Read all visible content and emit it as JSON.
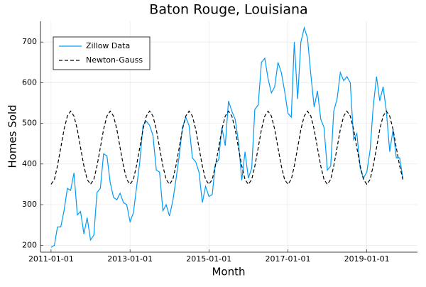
{
  "chart_data": {
    "type": "line",
    "title": "Baton Rouge, Louisiana",
    "xlabel": "Month",
    "ylabel": "Homes Sold",
    "x": [
      "2011-01-01",
      "2011-02-01",
      "2011-03-01",
      "2011-04-01",
      "2011-05-01",
      "2011-06-01",
      "2011-07-01",
      "2011-08-01",
      "2011-09-01",
      "2011-10-01",
      "2011-11-01",
      "2011-12-01",
      "2012-01-01",
      "2012-02-01",
      "2012-03-01",
      "2012-04-01",
      "2012-05-01",
      "2012-06-01",
      "2012-07-01",
      "2012-08-01",
      "2012-09-01",
      "2012-10-01",
      "2012-11-01",
      "2012-12-01",
      "2013-01-01",
      "2013-02-01",
      "2013-03-01",
      "2013-04-01",
      "2013-05-01",
      "2013-06-01",
      "2013-07-01",
      "2013-08-01",
      "2013-09-01",
      "2013-10-01",
      "2013-11-01",
      "2013-12-01",
      "2014-01-01",
      "2014-02-01",
      "2014-03-01",
      "2014-04-01",
      "2014-05-01",
      "2014-06-01",
      "2014-07-01",
      "2014-08-01",
      "2014-09-01",
      "2014-10-01",
      "2014-11-01",
      "2014-12-01",
      "2015-01-01",
      "2015-02-01",
      "2015-03-01",
      "2015-04-01",
      "2015-05-01",
      "2015-06-01",
      "2015-07-01",
      "2015-08-01",
      "2015-09-01",
      "2015-10-01",
      "2015-11-01",
      "2015-12-01",
      "2016-01-01",
      "2016-02-01",
      "2016-03-01",
      "2016-04-01",
      "2016-05-01",
      "2016-06-01",
      "2016-07-01",
      "2016-08-01",
      "2016-09-01",
      "2016-10-01",
      "2016-11-01",
      "2016-12-01",
      "2017-01-01",
      "2017-02-01",
      "2017-03-01",
      "2017-04-01",
      "2017-05-01",
      "2017-06-01",
      "2017-07-01",
      "2017-08-01",
      "2017-09-01",
      "2017-10-01",
      "2017-11-01",
      "2017-12-01",
      "2018-01-01",
      "2018-02-01",
      "2018-03-01",
      "2018-04-01",
      "2018-05-01",
      "2018-06-01",
      "2018-07-01",
      "2018-08-01",
      "2018-09-01",
      "2018-10-01",
      "2018-11-01",
      "2018-12-01",
      "2019-01-01",
      "2019-02-01",
      "2019-03-01",
      "2019-04-01",
      "2019-05-01",
      "2019-06-01",
      "2019-07-01",
      "2019-08-01",
      "2019-09-01",
      "2019-10-01",
      "2019-11-01",
      "2019-12-01"
    ],
    "series": [
      {
        "name": "Zillow Data",
        "color": "#009af9",
        "dash": false,
        "values": [
          195,
          200,
          245,
          245,
          285,
          340,
          335,
          378,
          275,
          283,
          228,
          268,
          213,
          225,
          330,
          340,
          425,
          420,
          355,
          318,
          312,
          328,
          305,
          300,
          258,
          280,
          340,
          405,
          495,
          505,
          495,
          470,
          385,
          380,
          285,
          300,
          272,
          310,
          360,
          420,
          490,
          515,
          495,
          415,
          405,
          380,
          305,
          345,
          320,
          325,
          400,
          410,
          490,
          445,
          555,
          530,
          510,
          455,
          360,
          430,
          365,
          390,
          535,
          545,
          650,
          660,
          610,
          575,
          590,
          650,
          625,
          580,
          525,
          515,
          700,
          560,
          700,
          735,
          710,
          620,
          540,
          580,
          510,
          490,
          385,
          395,
          530,
          560,
          625,
          605,
          615,
          600,
          460,
          475,
          390,
          365,
          380,
          435,
          540,
          615,
          555,
          590,
          530,
          430,
          485,
          415,
          415,
          365
        ]
      },
      {
        "name": "Newton-Gauss",
        "color": "#000000",
        "dash": true,
        "values": [
          350,
          362,
          395,
          440,
          485,
          518,
          530,
          518,
          485,
          440,
          395,
          362,
          350,
          362,
          395,
          440,
          485,
          518,
          530,
          518,
          485,
          440,
          395,
          362,
          350,
          362,
          395,
          440,
          485,
          518,
          530,
          518,
          485,
          440,
          395,
          362,
          350,
          362,
          395,
          440,
          485,
          518,
          530,
          518,
          485,
          440,
          395,
          362,
          350,
          362,
          395,
          440,
          485,
          518,
          530,
          518,
          485,
          440,
          395,
          362,
          350,
          362,
          395,
          440,
          485,
          518,
          530,
          518,
          485,
          440,
          395,
          362,
          350,
          362,
          395,
          440,
          485,
          518,
          530,
          518,
          485,
          440,
          395,
          362,
          350,
          362,
          395,
          440,
          485,
          518,
          530,
          518,
          485,
          440,
          395,
          362,
          350,
          362,
          395,
          440,
          485,
          518,
          530,
          518,
          485,
          440,
          395,
          362
        ]
      }
    ],
    "xlim": [
      "2010-09-25",
      "2020-04-14"
    ],
    "xticks": [
      "2011-01-01",
      "2013-01-01",
      "2015-01-01",
      "2017-01-01",
      "2019-01-01"
    ],
    "ylim": [
      183,
      751
    ],
    "yticks": [
      200,
      300,
      400,
      500,
      600,
      700
    ],
    "grid": true,
    "legend": "top-left"
  }
}
